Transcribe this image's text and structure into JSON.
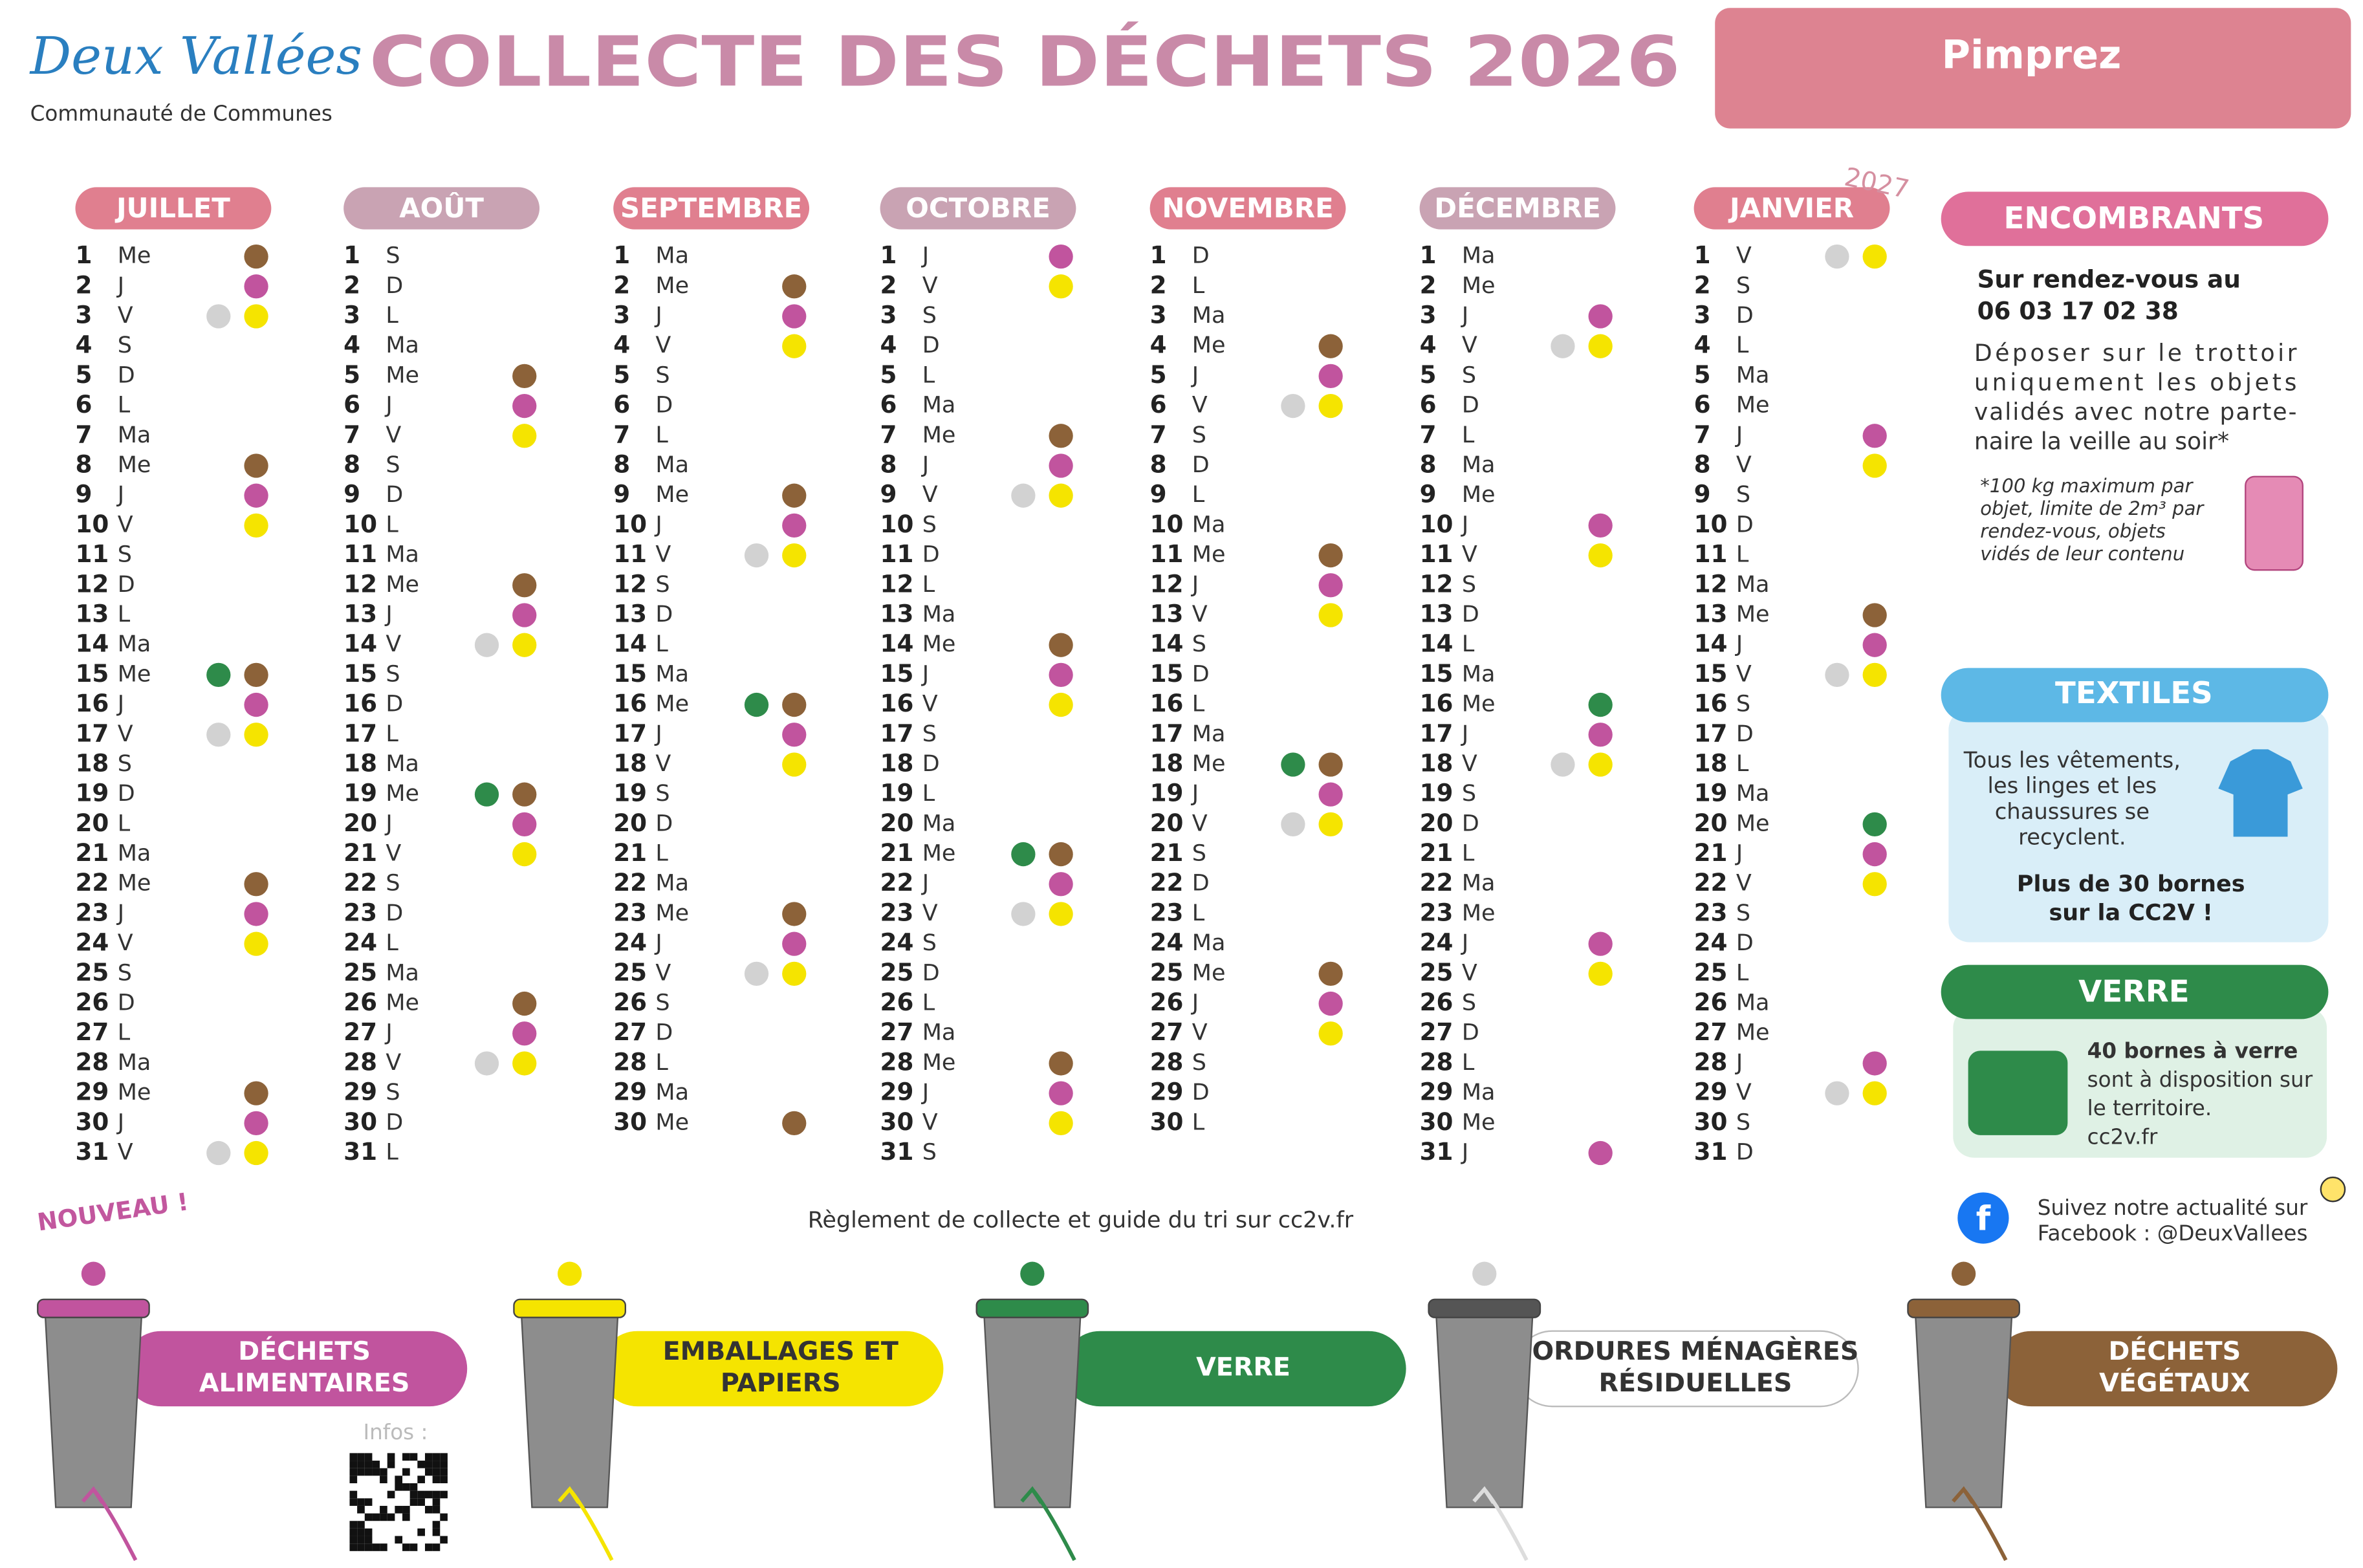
{
  "header": {
    "logo": "Deux Vallées",
    "logo_sub": "Communauté de Communes",
    "title": "COLLECTE DES DÉCHETS 2026",
    "commune": "Pimprez"
  },
  "calendar": {
    "months": [
      {
        "name": "JUILLET",
        "color": "#e07f8f",
        "days": [
          [
            1,
            "Me"
          ],
          [
            2,
            "J"
          ],
          [
            3,
            "V"
          ],
          [
            4,
            "S"
          ],
          [
            5,
            "D"
          ],
          [
            6,
            "L"
          ],
          [
            7,
            "Ma"
          ],
          [
            8,
            "Me"
          ],
          [
            9,
            "J"
          ],
          [
            10,
            "V"
          ],
          [
            11,
            "S"
          ],
          [
            12,
            "D"
          ],
          [
            13,
            "L"
          ],
          [
            14,
            "Ma"
          ],
          [
            15,
            "Me"
          ],
          [
            16,
            "J"
          ],
          [
            17,
            "V"
          ],
          [
            18,
            "S"
          ],
          [
            19,
            "D"
          ],
          [
            20,
            "L"
          ],
          [
            21,
            "Ma"
          ],
          [
            22,
            "Me"
          ],
          [
            23,
            "J"
          ],
          [
            24,
            "V"
          ],
          [
            25,
            "S"
          ],
          [
            26,
            "D"
          ],
          [
            27,
            "L"
          ],
          [
            28,
            "Ma"
          ],
          [
            29,
            "Me"
          ],
          [
            30,
            "J"
          ],
          [
            31,
            "V"
          ]
        ]
      },
      {
        "name": "AOÛT",
        "color": "#c9a3b3",
        "days": [
          [
            1,
            "S"
          ],
          [
            2,
            "D"
          ],
          [
            3,
            "L"
          ],
          [
            4,
            "Ma"
          ],
          [
            5,
            "Me"
          ],
          [
            6,
            "J"
          ],
          [
            7,
            "V"
          ],
          [
            8,
            "S"
          ],
          [
            9,
            "D"
          ],
          [
            10,
            "L"
          ],
          [
            11,
            "Ma"
          ],
          [
            12,
            "Me"
          ],
          [
            13,
            "J"
          ],
          [
            14,
            "V"
          ],
          [
            15,
            "S"
          ],
          [
            16,
            "D"
          ],
          [
            17,
            "L"
          ],
          [
            18,
            "Ma"
          ],
          [
            19,
            "Me"
          ],
          [
            20,
            "J"
          ],
          [
            21,
            "V"
          ],
          [
            22,
            "S"
          ],
          [
            23,
            "D"
          ],
          [
            24,
            "L"
          ],
          [
            25,
            "Ma"
          ],
          [
            26,
            "Me"
          ],
          [
            27,
            "J"
          ],
          [
            28,
            "V"
          ],
          [
            29,
            "S"
          ],
          [
            30,
            "D"
          ],
          [
            31,
            "L"
          ]
        ]
      },
      {
        "name": "SEPTEMBRE",
        "color": "#e07f8f",
        "days": [
          [
            1,
            "Ma"
          ],
          [
            2,
            "Me"
          ],
          [
            3,
            "J"
          ],
          [
            4,
            "V"
          ],
          [
            5,
            "S"
          ],
          [
            6,
            "D"
          ],
          [
            7,
            "L"
          ],
          [
            8,
            "Ma"
          ],
          [
            9,
            "Me"
          ],
          [
            10,
            "J"
          ],
          [
            11,
            "V"
          ],
          [
            12,
            "S"
          ],
          [
            13,
            "D"
          ],
          [
            14,
            "L"
          ],
          [
            15,
            "Ma"
          ],
          [
            16,
            "Me"
          ],
          [
            17,
            "J"
          ],
          [
            18,
            "V"
          ],
          [
            19,
            "S"
          ],
          [
            20,
            "D"
          ],
          [
            21,
            "L"
          ],
          [
            22,
            "Ma"
          ],
          [
            23,
            "Me"
          ],
          [
            24,
            "J"
          ],
          [
            25,
            "V"
          ],
          [
            26,
            "S"
          ],
          [
            27,
            "D"
          ],
          [
            28,
            "L"
          ],
          [
            29,
            "Ma"
          ],
          [
            30,
            "Me"
          ]
        ]
      },
      {
        "name": "OCTOBRE",
        "color": "#c9a3b3",
        "days": [
          [
            1,
            "J"
          ],
          [
            2,
            "V"
          ],
          [
            3,
            "S"
          ],
          [
            4,
            "D"
          ],
          [
            5,
            "L"
          ],
          [
            6,
            "Ma"
          ],
          [
            7,
            "Me"
          ],
          [
            8,
            "J"
          ],
          [
            9,
            "V"
          ],
          [
            10,
            "S"
          ],
          [
            11,
            "D"
          ],
          [
            12,
            "L"
          ],
          [
            13,
            "Ma"
          ],
          [
            14,
            "Me"
          ],
          [
            15,
            "J"
          ],
          [
            16,
            "V"
          ],
          [
            17,
            "S"
          ],
          [
            18,
            "D"
          ],
          [
            19,
            "L"
          ],
          [
            20,
            "Ma"
          ],
          [
            21,
            "Me"
          ],
          [
            22,
            "J"
          ],
          [
            23,
            "V"
          ],
          [
            24,
            "S"
          ],
          [
            25,
            "D"
          ],
          [
            26,
            "L"
          ],
          [
            27,
            "Ma"
          ],
          [
            28,
            "Me"
          ],
          [
            29,
            "J"
          ],
          [
            30,
            "V"
          ],
          [
            31,
            "S"
          ]
        ]
      },
      {
        "name": "NOVEMBRE",
        "color": "#e07f8f",
        "days": [
          [
            1,
            "D"
          ],
          [
            2,
            "L"
          ],
          [
            3,
            "Ma"
          ],
          [
            4,
            "Me"
          ],
          [
            5,
            "J"
          ],
          [
            6,
            "V"
          ],
          [
            7,
            "S"
          ],
          [
            8,
            "D"
          ],
          [
            9,
            "L"
          ],
          [
            10,
            "Ma"
          ],
          [
            11,
            "Me"
          ],
          [
            12,
            "J"
          ],
          [
            13,
            "V"
          ],
          [
            14,
            "S"
          ],
          [
            15,
            "D"
          ],
          [
            16,
            "L"
          ],
          [
            17,
            "Ma"
          ],
          [
            18,
            "Me"
          ],
          [
            19,
            "J"
          ],
          [
            20,
            "V"
          ],
          [
            21,
            "S"
          ],
          [
            22,
            "D"
          ],
          [
            23,
            "L"
          ],
          [
            24,
            "Ma"
          ],
          [
            25,
            "Me"
          ],
          [
            26,
            "J"
          ],
          [
            27,
            "V"
          ],
          [
            28,
            "S"
          ],
          [
            29,
            "D"
          ],
          [
            30,
            "L"
          ]
        ]
      },
      {
        "name": "DÉCEMBRE",
        "color": "#c9a3b3",
        "days": [
          [
            1,
            "Ma"
          ],
          [
            2,
            "Me"
          ],
          [
            3,
            "J"
          ],
          [
            4,
            "V"
          ],
          [
            5,
            "S"
          ],
          [
            6,
            "D"
          ],
          [
            7,
            "L"
          ],
          [
            8,
            "Ma"
          ],
          [
            9,
            "Me"
          ],
          [
            10,
            "J"
          ],
          [
            11,
            "V"
          ],
          [
            12,
            "S"
          ],
          [
            13,
            "D"
          ],
          [
            14,
            "L"
          ],
          [
            15,
            "Ma"
          ],
          [
            16,
            "Me"
          ],
          [
            17,
            "J"
          ],
          [
            18,
            "V"
          ],
          [
            19,
            "S"
          ],
          [
            20,
            "D"
          ],
          [
            21,
            "L"
          ],
          [
            22,
            "Ma"
          ],
          [
            23,
            "Me"
          ],
          [
            24,
            "J"
          ],
          [
            25,
            "V"
          ],
          [
            26,
            "S"
          ],
          [
            27,
            "D"
          ],
          [
            28,
            "L"
          ],
          [
            29,
            "Ma"
          ],
          [
            30,
            "Me"
          ],
          [
            31,
            "J"
          ]
        ]
      },
      {
        "name": "JANVIER",
        "year": "2027",
        "color": "#e07f8f",
        "days": [
          [
            1,
            "V"
          ],
          [
            2,
            "S"
          ],
          [
            3,
            "D"
          ],
          [
            4,
            "L"
          ],
          [
            5,
            "Ma"
          ],
          [
            6,
            "Me"
          ],
          [
            7,
            "J"
          ],
          [
            8,
            "V"
          ],
          [
            9,
            "S"
          ],
          [
            10,
            "D"
          ],
          [
            11,
            "L"
          ],
          [
            12,
            "Ma"
          ],
          [
            13,
            "Me"
          ],
          [
            14,
            "J"
          ],
          [
            15,
            "V"
          ],
          [
            16,
            "S"
          ],
          [
            17,
            "D"
          ],
          [
            18,
            "L"
          ],
          [
            19,
            "Ma"
          ],
          [
            20,
            "Me"
          ],
          [
            21,
            "J"
          ],
          [
            22,
            "V"
          ],
          [
            23,
            "S"
          ],
          [
            24,
            "D"
          ],
          [
            25,
            "L"
          ],
          [
            26,
            "Ma"
          ],
          [
            27,
            "Me"
          ],
          [
            28,
            "J"
          ],
          [
            29,
            "V"
          ],
          [
            30,
            "S"
          ],
          [
            31,
            "D"
          ]
        ]
      }
    ]
  },
  "bins": [
    {
      "label": [
        "DÉCHETS",
        "ALIMENTAIRES"
      ],
      "color": "#c1549e",
      "text_color": "#ffffff",
      "days": [
        [
          2,
          9,
          16,
          23,
          30
        ],
        [
          6,
          13,
          20,
          27
        ],
        [
          3,
          10,
          17,
          24
        ],
        [
          1,
          8,
          15,
          22,
          29
        ],
        [
          5,
          12,
          19,
          26
        ],
        [
          3,
          10,
          17,
          24,
          31
        ],
        [
          7,
          14,
          21,
          28
        ]
      ]
    },
    {
      "label": [
        "EMBALLAGES ET",
        "PAPIERS"
      ],
      "color": "#f5e400",
      "text_color": "#333333",
      "days": [
        [
          3,
          10,
          17,
          24,
          31
        ],
        [
          7,
          14,
          21,
          28
        ],
        [
          4,
          11,
          18,
          25
        ],
        [
          2,
          9,
          16,
          23,
          30
        ],
        [
          6,
          13,
          20,
          27
        ],
        [
          4,
          11,
          18,
          25
        ],
        [
          1,
          8,
          15,
          22,
          29
        ]
      ]
    },
    {
      "label": [
        "VERRE"
      ],
      "color": "#2e8b4a",
      "text_color": "#ffffff",
      "days": [
        [
          15
        ],
        [
          19
        ],
        [
          16
        ],
        [
          21
        ],
        [
          18
        ],
        [
          16
        ],
        [
          20
        ]
      ]
    },
    {
      "label": [
        "ORDURES MÉNAGÈRES",
        "RÉSIDUELLES"
      ],
      "color": "#d2d2d2",
      "text_color": "#333333",
      "days": [
        [
          3,
          17,
          31
        ],
        [
          14,
          28
        ],
        [
          11,
          25
        ],
        [
          9,
          23
        ],
        [
          6,
          20
        ],
        [
          4,
          18
        ],
        [
          1,
          15,
          29
        ]
      ]
    },
    {
      "label": [
        "DÉCHETS",
        "VÉGÉTAUX"
      ],
      "color": "#8c6239",
      "text_color": "#ffffff",
      "days": [
        [
          1,
          8,
          15,
          22,
          29
        ],
        [
          5,
          12,
          19,
          26
        ],
        [
          2,
          9,
          16,
          23,
          30
        ],
        [
          7,
          14,
          21,
          28
        ],
        [
          4,
          11,
          18,
          25
        ],
        [],
        [
          13
        ]
      ]
    }
  ],
  "panels": {
    "encombrants": {
      "title": "ENCOMBRANTS",
      "bold": [
        "Sur rendez-vous au",
        "06 03 17 02 38"
      ],
      "text": [
        "Déposer sur le trottoir",
        "uniquement les objets",
        "validés avec notre parte-",
        "naire la veille au soir*"
      ],
      "note": [
        "*100 kg maximum par",
        "objet, limite de 2m³ par",
        "rendez-vous, objets",
        "vidés de leur contenu"
      ]
    },
    "textiles": {
      "title": "TEXTILES",
      "text": [
        "Tous les vêtements,",
        "les linges et les",
        "chaussures se",
        "recyclent."
      ],
      "bold": [
        "Plus de 30 bornes",
        "sur la CC2V !"
      ]
    },
    "verre": {
      "title": "VERRE",
      "text": [
        "40 bornes à verre",
        "sont à disposition sur",
        "le territoire.",
        "cc2v.fr"
      ]
    }
  },
  "footer": {
    "nouveau": "NOUVEAU !",
    "guide": "Règlement de collecte et guide du tri sur cc2v.fr",
    "infos": "Infos :",
    "facebook": [
      "Suivez notre actualité sur",
      "Facebook : @DeuxVallees"
    ]
  }
}
